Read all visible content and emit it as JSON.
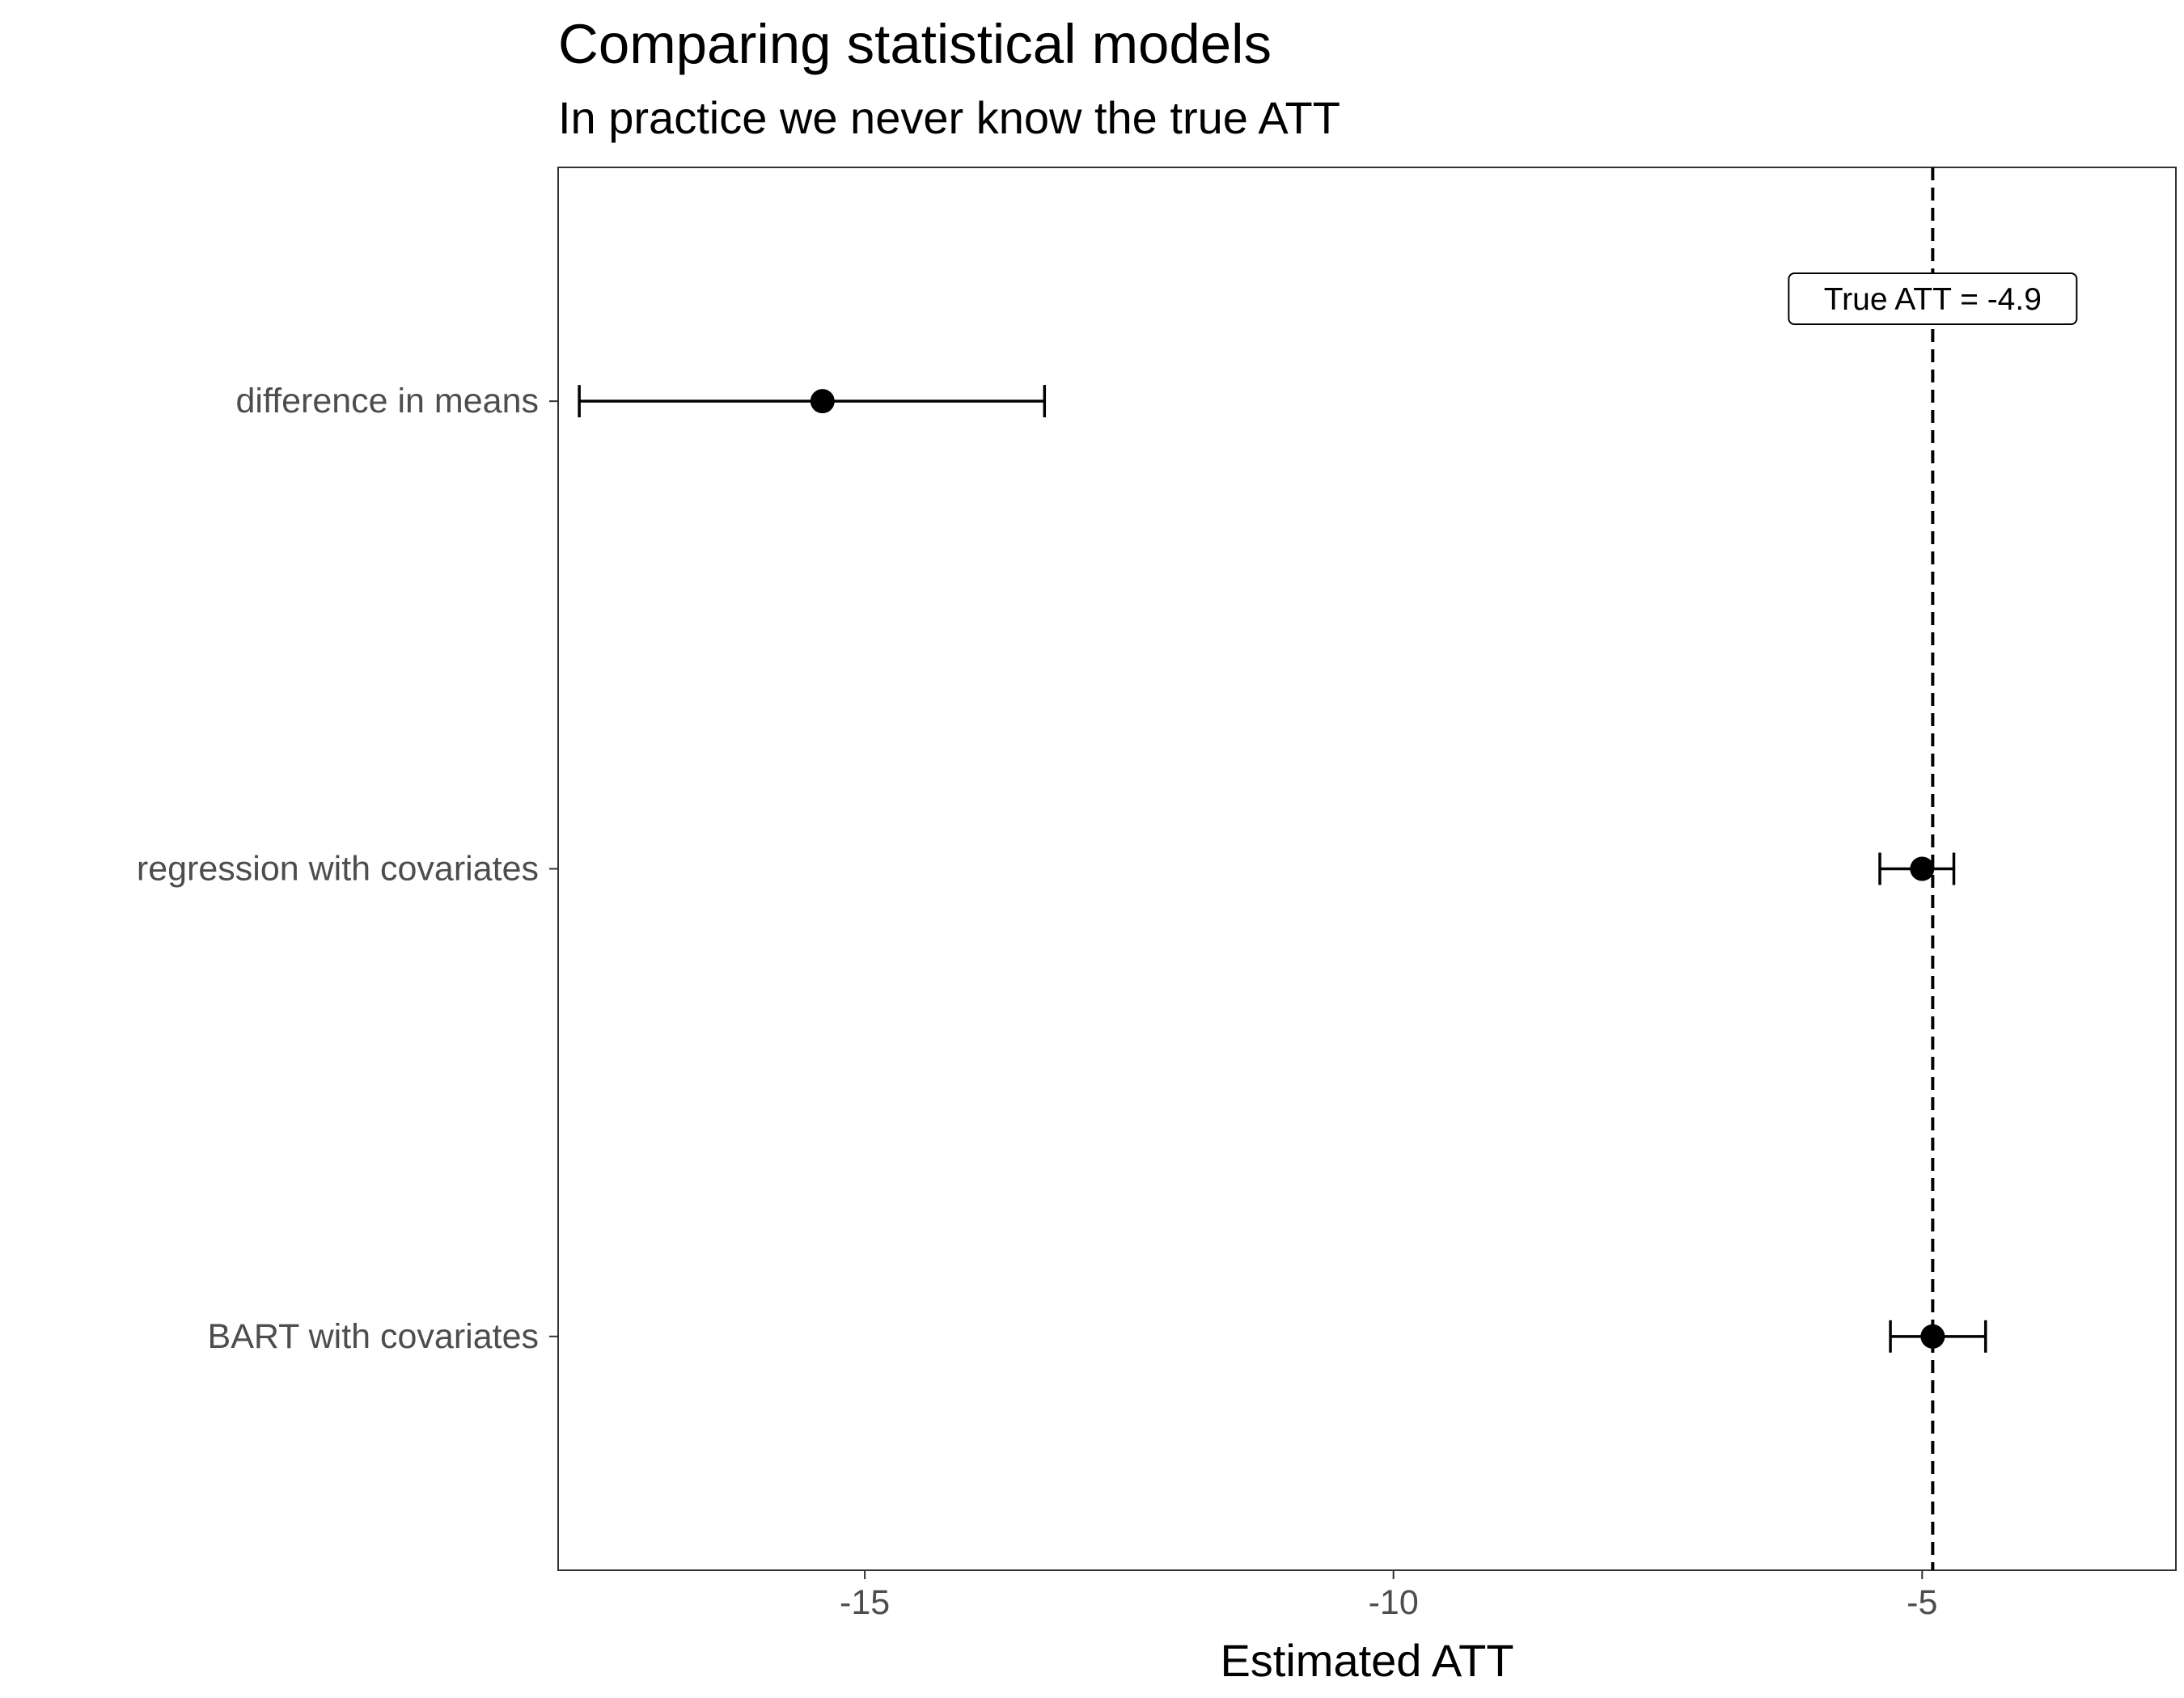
{
  "chart_data": {
    "type": "scatter",
    "subtype": "point-range",
    "title": "Comparing statistical models",
    "subtitle": "In practice we never know the true ATT",
    "xlabel": "Estimated ATT",
    "ylabel": "",
    "xlim": [
      -17.9,
      -2.6
    ],
    "xticks": [
      -15,
      -10,
      -5
    ],
    "xtick_labels": [
      "-15",
      "-10",
      "-5"
    ],
    "categories": [
      "difference in means",
      "regression with covariates",
      "BART with covariates"
    ],
    "estimates": [
      {
        "model": "difference in means",
        "estimate": -15.4,
        "lower": -17.7,
        "upper": -13.3
      },
      {
        "model": "regression with covariates",
        "estimate": -5.0,
        "lower": -5.4,
        "upper": -4.7
      },
      {
        "model": "BART with covariates",
        "estimate": -4.9,
        "lower": -5.3,
        "upper": -4.4
      }
    ],
    "reference_line": {
      "x": -4.9,
      "style": "dashed"
    },
    "annotation": {
      "text": "True ATT = -4.9",
      "x": -4.9
    },
    "grid": false,
    "legend": "none"
  }
}
